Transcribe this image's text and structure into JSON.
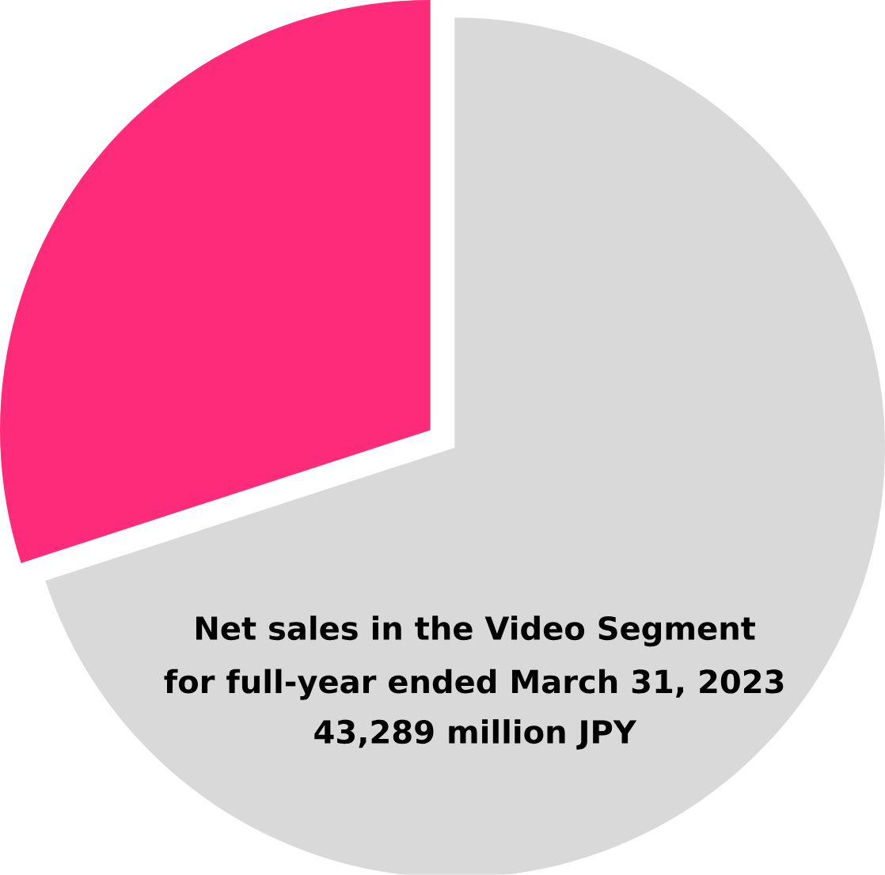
{
  "chart_data": {
    "type": "pie",
    "categories": [
      null,
      null
    ],
    "values": [
      30,
      70
    ],
    "colors": [
      "#fe2a7a",
      "#d9d9d9"
    ],
    "annotations": [
      "Net sales in the Video Segment",
      "for full-year ended March 31, 2023",
      "43,289 million JPY"
    ]
  }
}
